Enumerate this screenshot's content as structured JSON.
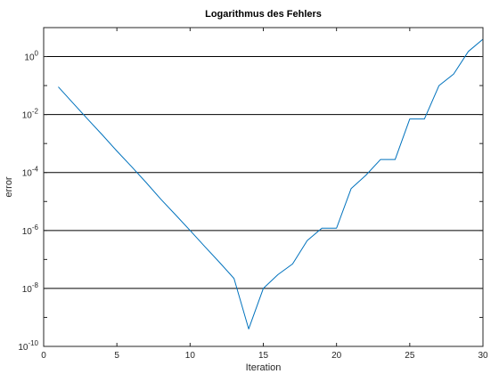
{
  "chart_data": {
    "type": "line",
    "title": "Logarithmus des Fehlers",
    "xlabel": "Iteration",
    "ylabel": "error",
    "xlim": [
      0,
      30
    ],
    "ylim": [
      1e-10,
      10
    ],
    "yscale": "log",
    "xticks": [
      "0",
      "5",
      "10",
      "15",
      "20",
      "25",
      "30"
    ],
    "yticks": [
      {
        "base": "10",
        "exp": "0",
        "value": 1
      },
      {
        "base": "10",
        "exp": "-2",
        "value": 0.01
      },
      {
        "base": "10",
        "exp": "-4",
        "value": 0.0001
      },
      {
        "base": "10",
        "exp": "-6",
        "value": 1e-06
      },
      {
        "base": "10",
        "exp": "-8",
        "value": 1e-08
      },
      {
        "base": "10",
        "exp": "-10",
        "value": 1e-10
      }
    ],
    "grid": "horizontal",
    "series": [
      {
        "color": "#0072bd",
        "x": [
          1,
          2,
          3,
          4,
          5,
          6,
          7,
          8,
          9,
          10,
          11,
          12,
          13,
          14,
          15,
          16,
          17,
          18,
          19,
          20,
          21,
          22,
          23,
          24,
          25,
          26,
          27,
          28,
          29,
          30
        ],
        "y": [
          0.09,
          0.025,
          0.007,
          0.002,
          0.00055,
          0.00016,
          4.5e-05,
          1.2e-05,
          3.5e-06,
          1e-06,
          2.8e-07,
          8e-08,
          2.2e-08,
          4e-10,
          1e-08,
          3e-08,
          7e-08,
          4.5e-07,
          1.2e-06,
          1.2e-06,
          2.8e-05,
          8e-05,
          0.00028,
          0.00028,
          0.007,
          0.007,
          0.1,
          0.25,
          1.5,
          4
        ]
      }
    ]
  }
}
